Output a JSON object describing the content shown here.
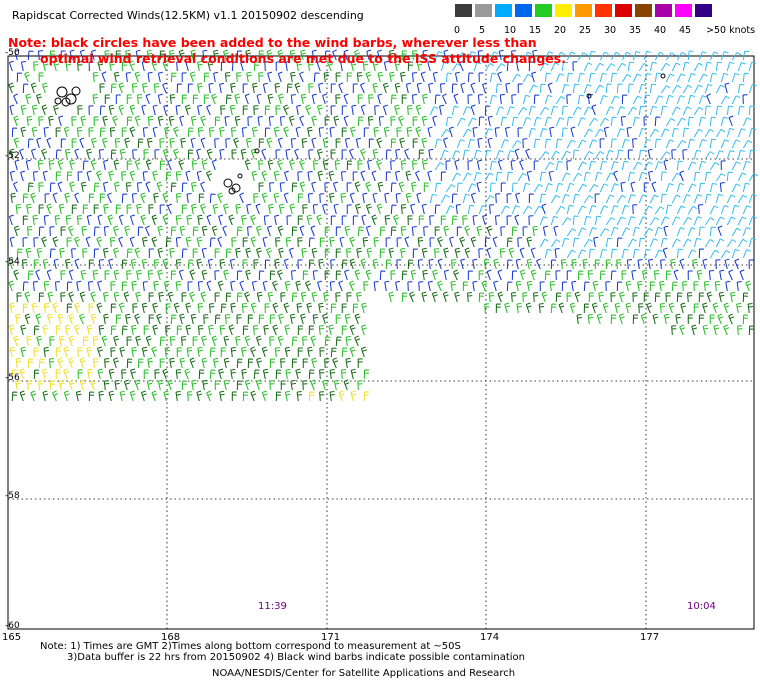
{
  "title": "Rapidscat Corrected Winds(12.5KM) v1.1 20150902 descending",
  "note": {
    "line1": "Note: black circles have been added to the wind barbs, wherever less than",
    "line2": "optimal wind retrieval conditions are met due to the ISS attitude changes."
  },
  "legend": {
    "unit_label": ">50 knots",
    "labels": [
      "0",
      "5",
      "10",
      "15",
      "20",
      "25",
      "30",
      "35",
      "40",
      "45"
    ],
    "colors": [
      "#3c3c3c",
      "#9a9a9a",
      "#00aaff",
      "#0066ee",
      "#22cc22",
      "#ffee00",
      "#ff9900",
      "#ff3300",
      "#dd0000",
      "#884400",
      "#aa00aa",
      "#ff00ff",
      "#330088"
    ]
  },
  "axes": {
    "lon_labels": [
      "165",
      "168",
      "171",
      "174",
      "177"
    ],
    "lat_labels": [
      "-50",
      "-52",
      "-54",
      "-56",
      "-58",
      "-60"
    ]
  },
  "times": {
    "left": "11:39",
    "right": "10:04"
  },
  "footer": {
    "line1": "Note: 1) Times are GMT 2)Times along bottom correspond to measurement at ~50S",
    "line2": "3)Data buffer is 22 hrs from 20150902 4) Black wind barbs indicate possible contamination",
    "credit": "NOAA/NESDIS/Center for Satellite Applications and Research"
  },
  "barb_colors": {
    "cyan": "#33bbee",
    "blue": "#1133cc",
    "green": "#22bb22",
    "dark_green": "#116611",
    "yellow": "#eedd22",
    "black": "#000000"
  }
}
